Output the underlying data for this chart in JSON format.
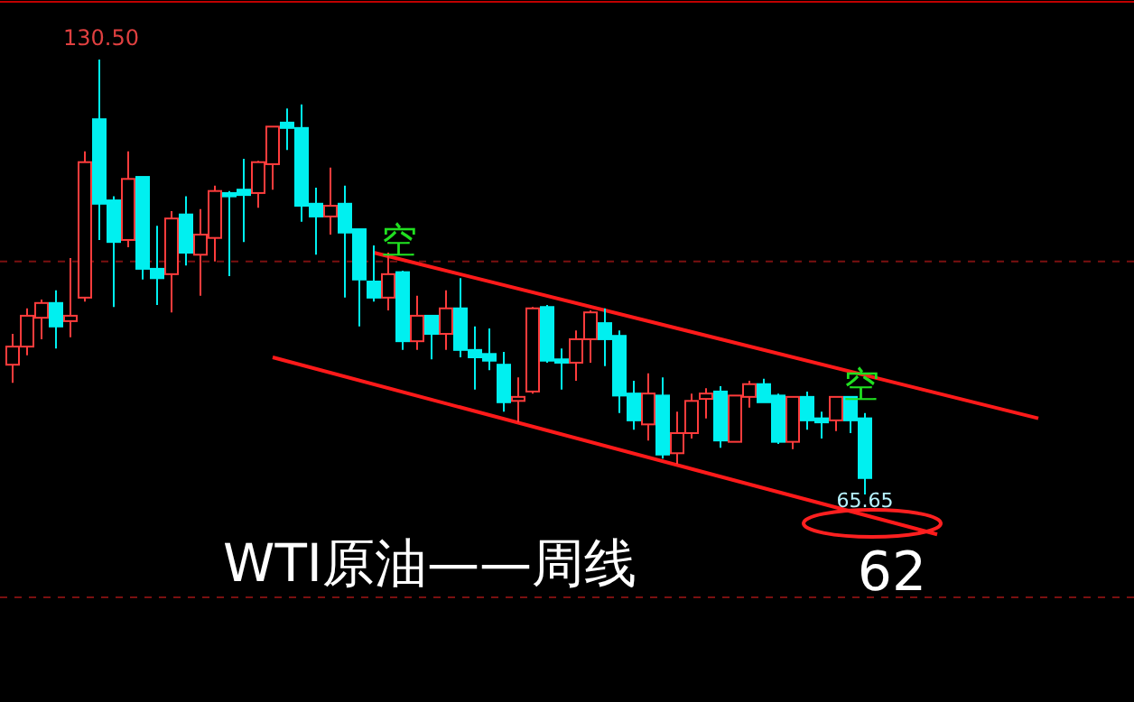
{
  "chart_data": {
    "type": "candlestick",
    "title": "WTI原油——周线",
    "categories": [
      null,
      null,
      null,
      null,
      null,
      null,
      null,
      null,
      null,
      null,
      null,
      null,
      null,
      null,
      null,
      null,
      null,
      null,
      null,
      null,
      null,
      null,
      null,
      null,
      null,
      null,
      null,
      null,
      null,
      null,
      null,
      null,
      null,
      null,
      null,
      null,
      null,
      null,
      null,
      null,
      null,
      null,
      null,
      null,
      null,
      null,
      null,
      null,
      null,
      null,
      null,
      null,
      null,
      null,
      null,
      null,
      null,
      null,
      null,
      null,
      null,
      null,
      null,
      null,
      null,
      null,
      null,
      null,
      null,
      null,
      null,
      null
    ],
    "ohlc": [
      [
        85.0,
        89.6,
        82.3,
        87.7
      ],
      [
        87.7,
        93.4,
        86.4,
        92.3
      ],
      [
        92.0,
        94.7,
        88.8,
        94.2
      ],
      [
        94.2,
        96.1,
        87.4,
        90.7
      ],
      [
        91.5,
        100.9,
        89.1,
        92.3
      ],
      [
        95.0,
        116.8,
        94.4,
        115.2
      ],
      [
        121.6,
        130.5,
        103.6,
        109.0
      ],
      [
        109.5,
        110.1,
        93.6,
        103.3
      ],
      [
        103.6,
        116.8,
        102.5,
        112.7
      ],
      [
        113.0,
        113.0,
        97.7,
        99.3
      ],
      [
        99.3,
        105.7,
        93.9,
        97.9
      ],
      [
        98.5,
        107.9,
        92.8,
        106.8
      ],
      [
        107.4,
        110.1,
        99.8,
        101.7
      ],
      [
        101.4,
        108.2,
        95.3,
        104.4
      ],
      [
        103.9,
        111.7,
        100.4,
        110.9
      ],
      [
        110.6,
        110.9,
        98.2,
        110.1
      ],
      [
        111.1,
        115.7,
        103.3,
        110.3
      ],
      [
        110.6,
        115.4,
        108.4,
        115.2
      ],
      [
        114.9,
        120.5,
        111.1,
        120.5
      ],
      [
        121.1,
        123.2,
        117.0,
        120.3
      ],
      [
        120.3,
        123.8,
        106.3,
        108.7
      ],
      [
        109.0,
        111.4,
        101.4,
        107.1
      ],
      [
        107.1,
        114.4,
        104.4,
        108.7
      ],
      [
        109.0,
        111.7,
        95.0,
        104.7
      ],
      [
        105.2,
        105.2,
        90.7,
        97.7
      ],
      [
        97.4,
        102.8,
        94.4,
        95.0
      ],
      [
        95.0,
        101.7,
        93.1,
        98.5
      ],
      [
        98.8,
        99.0,
        87.2,
        88.5
      ],
      [
        88.5,
        95.3,
        87.2,
        92.3
      ],
      [
        92.3,
        92.3,
        85.8,
        89.6
      ],
      [
        89.6,
        96.1,
        87.2,
        93.4
      ],
      [
        93.4,
        97.9,
        86.1,
        87.2
      ],
      [
        87.2,
        90.7,
        81.3,
        86.1
      ],
      [
        86.6,
        90.4,
        84.2,
        85.6
      ],
      [
        85.0,
        86.9,
        78.0,
        79.4
      ],
      [
        79.6,
        83.1,
        76.4,
        80.2
      ],
      [
        81.0,
        93.6,
        80.7,
        93.4
      ],
      [
        93.6,
        93.9,
        85.3,
        85.6
      ],
      [
        85.8,
        87.4,
        81.3,
        85.3
      ],
      [
        85.3,
        90.1,
        82.6,
        88.8
      ],
      [
        88.8,
        93.1,
        85.3,
        92.8
      ],
      [
        91.2,
        93.4,
        84.8,
        88.8
      ],
      [
        89.3,
        90.1,
        77.8,
        80.4
      ],
      [
        80.7,
        82.6,
        75.3,
        76.7
      ],
      [
        76.1,
        83.7,
        73.7,
        80.7
      ],
      [
        80.4,
        83.1,
        71.0,
        71.6
      ],
      [
        71.8,
        78.0,
        70.2,
        74.8
      ],
      [
        74.8,
        80.7,
        74.0,
        79.6
      ],
      [
        79.9,
        81.5,
        77.0,
        80.7
      ],
      [
        81.0,
        81.8,
        72.6,
        73.7
      ],
      [
        73.5,
        80.4,
        73.5,
        80.4
      ],
      [
        80.2,
        82.6,
        78.6,
        82.1
      ],
      [
        82.1,
        82.9,
        79.4,
        79.4
      ],
      [
        80.4,
        80.7,
        73.2,
        73.5
      ],
      [
        73.5,
        80.2,
        72.4,
        80.2
      ],
      [
        80.2,
        81.0,
        75.3,
        76.7
      ],
      [
        77.0,
        78.0,
        74.0,
        76.4
      ],
      [
        76.7,
        80.2,
        75.1,
        80.2
      ],
      [
        80.2,
        80.2,
        74.8,
        76.7
      ],
      [
        77.0,
        77.8,
        65.65,
        68.1
      ],
      null,
      null,
      null,
      null,
      null,
      null,
      null,
      null,
      null,
      null,
      null,
      null
    ],
    "colors": [
      "#ff3c3c",
      "#ff3c3c",
      "#ff3c3c",
      "#00f0f0",
      "#ff3c3c",
      "#ff3c3c",
      "#00f0f0",
      "#00f0f0",
      "#ff3c3c",
      "#00f0f0",
      "#00f0f0",
      "#ff3c3c",
      "#00f0f0",
      "#ff3c3c",
      "#ff3c3c",
      "#00f0f0",
      "#00f0f0",
      "#ff3c3c",
      "#ff3c3c",
      "#00f0f0",
      "#00f0f0",
      "#00f0f0",
      "#ff3c3c",
      "#00f0f0",
      "#00f0f0",
      "#00f0f0",
      "#ff3c3c",
      "#00f0f0",
      "#ff3c3c",
      "#00f0f0",
      "#ff3c3c",
      "#00f0f0",
      "#00f0f0",
      "#00f0f0",
      "#00f0f0",
      "#ff3c3c",
      "#ff3c3c",
      "#00f0f0",
      "#00f0f0",
      "#ff3c3c",
      "#ff3c3c",
      "#00f0f0",
      "#00f0f0",
      "#00f0f0",
      "#ff3c3c",
      "#00f0f0",
      "#ff3c3c",
      "#ff3c3c",
      "#ff3c3c",
      "#00f0f0",
      "#ff3c3c",
      "#ff3c3c",
      "#00f0f0",
      "#00f0f0",
      "#ff3c3c",
      "#00f0f0",
      "#00f0f0",
      "#ff3c3c",
      "#00f0f0",
      "#00f0f0",
      null,
      null,
      null,
      null,
      null,
      null,
      null,
      null,
      null,
      null,
      null,
      null
    ],
    "series": [
      {
        "type": "line",
        "color": "#ff1a1a",
        "values": [
          null,
          null,
          null,
          null,
          null,
          null,
          null,
          null,
          null,
          null,
          null,
          null,
          null,
          null,
          null,
          null,
          null,
          null,
          null,
          null,
          null,
          null,
          null,
          null,
          null,
          101.7,
          null,
          null,
          null,
          null,
          null,
          null,
          null,
          null,
          null,
          null,
          null,
          null,
          null,
          null,
          null,
          null,
          null,
          null,
          null,
          null,
          null,
          null,
          null,
          null,
          null,
          null,
          null,
          null,
          null,
          null,
          null,
          null,
          null,
          null,
          null,
          null,
          null,
          null,
          null,
          null,
          null,
          null,
          null,
          null,
          null,
          77.0
        ]
      },
      {
        "type": "line",
        "color": "#ff1a1a",
        "values": [
          null,
          null,
          null,
          null,
          null,
          null,
          null,
          null,
          null,
          null,
          null,
          null,
          null,
          null,
          null,
          null,
          null,
          null,
          86.1,
          null,
          null,
          null,
          null,
          null,
          null,
          null,
          null,
          null,
          null,
          null,
          null,
          null,
          null,
          null,
          null,
          null,
          null,
          null,
          null,
          null,
          null,
          null,
          null,
          null,
          null,
          null,
          null,
          null,
          null,
          null,
          null,
          null,
          null,
          null,
          null,
          null,
          null,
          null,
          null,
          null,
          null,
          null,
          null,
          null,
          59.7,
          null,
          null,
          null,
          null,
          null,
          null,
          null
        ]
      }
    ],
    "ref_lines": [
      {
        "axis": "y",
        "value": 100.4,
        "color": "#7a1010",
        "line_style": "dashed"
      },
      {
        "axis": "y",
        "value": 50.3,
        "color": "#7a1010",
        "line_style": "dashed"
      }
    ],
    "annotations": [
      {
        "text": "130.50",
        "y": 130.5
      },
      {
        "text": "65.65",
        "y": 65.65
      },
      {
        "text": "空",
        "y": 101.7
      },
      {
        "text": "空",
        "y": 80.2
      },
      "62"
    ]
  }
}
